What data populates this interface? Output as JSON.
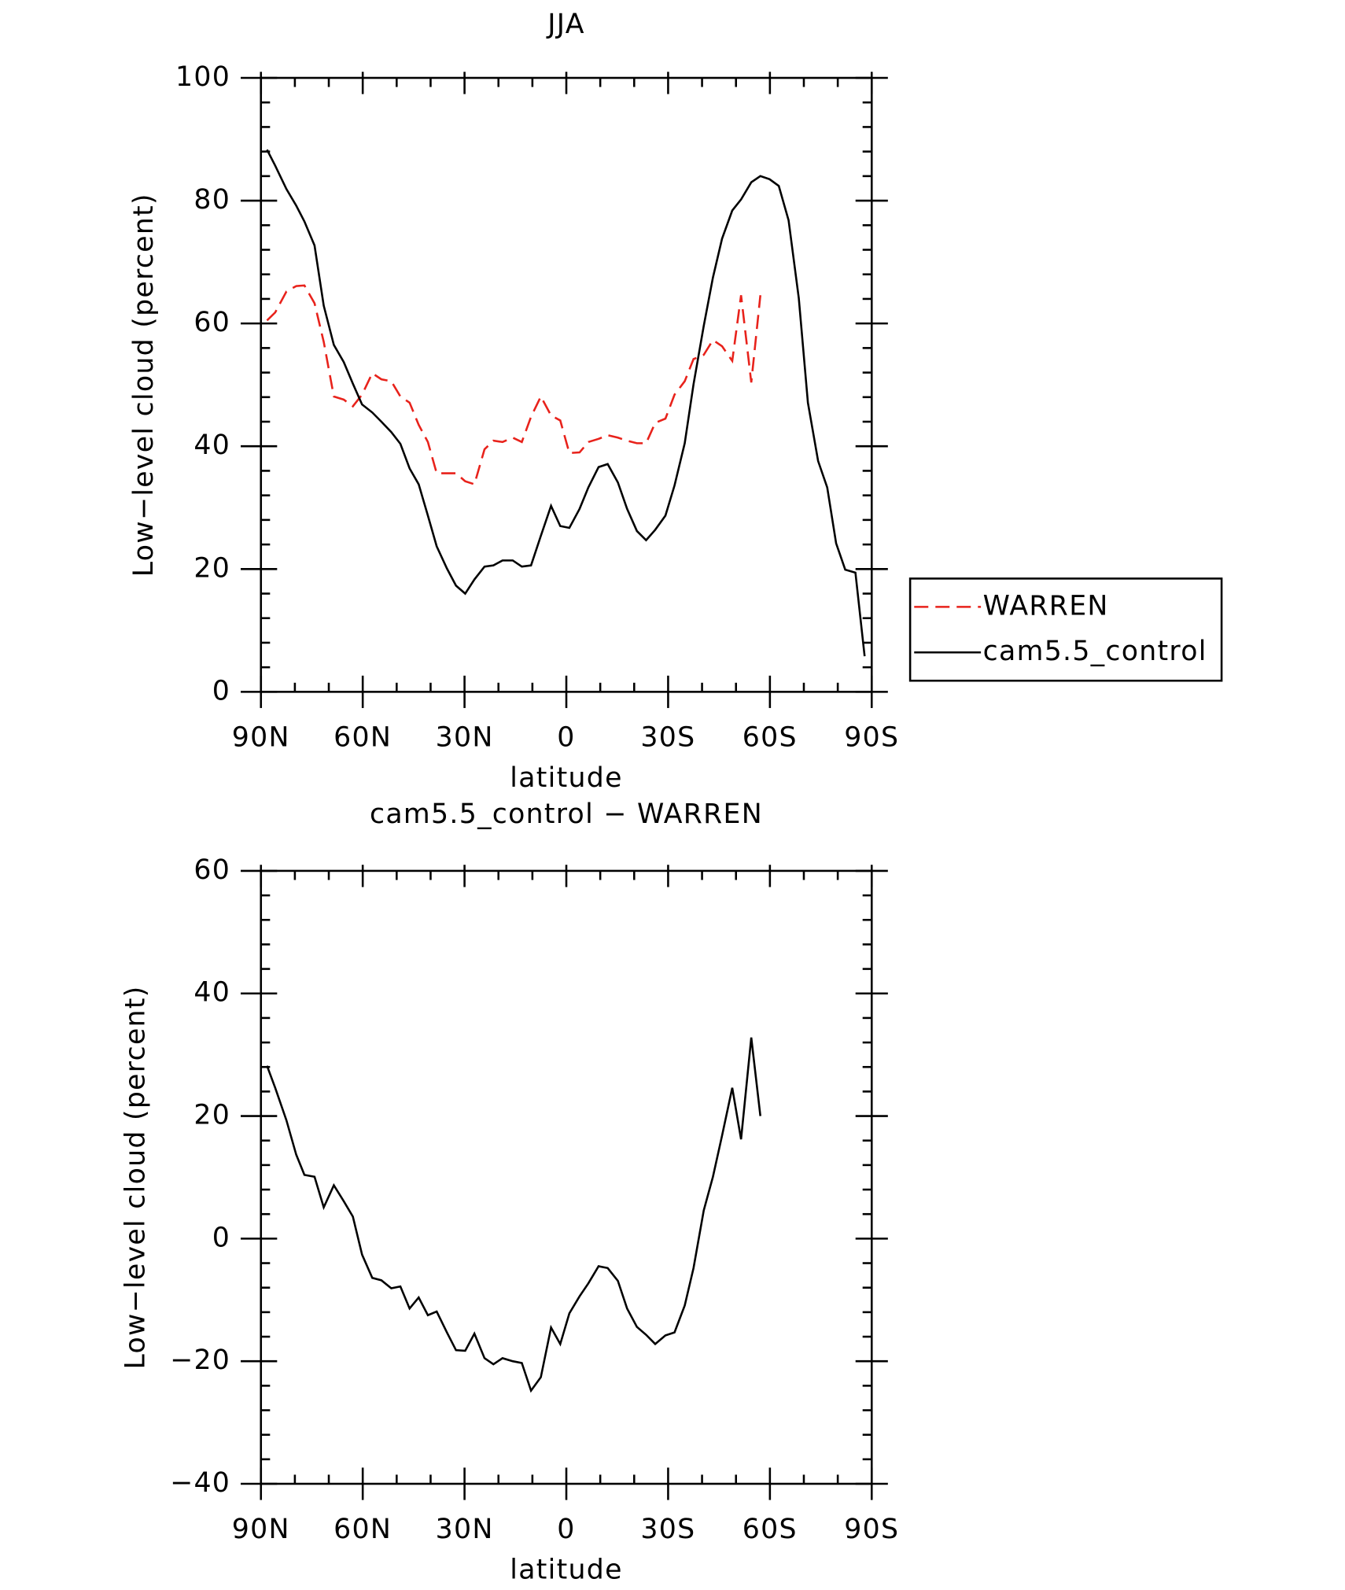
{
  "chart_data": [
    {
      "type": "line",
      "title": "JJA",
      "xlabel": "latitude",
      "ylabel": "Low−level cloud (percent)",
      "x": [
        88.2,
        85.8,
        82.5,
        79.6,
        77.2,
        74.2,
        71.5,
        68.5,
        65.6,
        62.9,
        60.2,
        57.2,
        54.5,
        51.6,
        48.9,
        46.2,
        43.5,
        40.8,
        38.2,
        35.2,
        32.5,
        29.8,
        27.1,
        24.1,
        21.5,
        18.8,
        15.8,
        13.1,
        10.4,
        7.5,
        4.5,
        1.8,
        -0.9,
        -3.9,
        -6.5,
        -9.5,
        -12.2,
        -15.2,
        -17.9,
        -20.8,
        -23.5,
        -26.2,
        -29.2,
        -31.9,
        -34.9,
        -37.5,
        -40.5,
        -43.2,
        -45.9,
        -48.9,
        -51.5,
        -54.5,
        -57.2,
        -59.9,
        -62.6,
        -65.5,
        -68.5,
        -71.2,
        -74.2,
        -76.9,
        -79.5,
        -82.2,
        -85.2,
        -87.9
      ],
      "series": [
        {
          "name": "WARREN",
          "color": "#e8221b",
          "style": "dashed",
          "values": [
            60.5,
            61.8,
            65.2,
            66.1,
            66.2,
            63.3,
            57.0,
            48.1,
            47.6,
            46.5,
            48.4,
            51.9,
            50.9,
            50.6,
            48.1,
            47.1,
            43.5,
            40.7,
            35.6,
            35.6,
            35.6,
            34.3,
            33.8,
            39.5,
            40.9,
            40.7,
            41.4,
            40.7,
            44.8,
            48.1,
            45.0,
            44.2,
            38.9,
            39.0,
            40.7,
            41.2,
            41.8,
            41.4,
            40.9,
            40.5,
            40.5,
            43.8,
            44.5,
            48.4,
            50.6,
            54.2,
            54.9,
            57.3,
            56.3,
            53.9,
            64.6,
            50.4,
            64.6,
            null,
            null,
            null,
            null,
            null,
            null,
            null,
            null,
            null,
            null,
            null
          ]
        },
        {
          "name": "cam5.5_control",
          "color": "#000000",
          "style": "solid",
          "values": [
            88.3,
            85.7,
            81.9,
            79.2,
            76.6,
            72.7,
            62.9,
            56.5,
            53.7,
            50.2,
            46.8,
            45.5,
            44.0,
            42.3,
            40.4,
            36.4,
            33.8,
            28.7,
            23.7,
            20.1,
            17.3,
            16.0,
            18.3,
            20.4,
            20.6,
            21.4,
            21.4,
            20.4,
            20.6,
            25.4,
            30.3,
            27.0,
            26.7,
            29.8,
            33.3,
            36.6,
            37.1,
            34.1,
            29.8,
            26.2,
            24.7,
            26.4,
            28.7,
            33.6,
            40.5,
            50.1,
            59.6,
            67.5,
            73.8,
            78.4,
            80.2,
            83.0,
            84.0,
            83.5,
            82.4,
            76.8,
            64.1,
            47.1,
            37.6,
            33.3,
            24.2,
            19.9,
            19.4,
            5.8
          ]
        }
      ],
      "xlim": [
        90,
        -90
      ],
      "xticks": [
        {
          "value": 90,
          "label": "90N"
        },
        {
          "value": 60,
          "label": "60N"
        },
        {
          "value": 30,
          "label": "30N"
        },
        0,
        {
          "value": -30,
          "label": "30S"
        },
        {
          "value": -60,
          "label": "60S"
        },
        {
          "value": -90,
          "label": "90S"
        }
      ],
      "ylim": [
        0,
        100
      ],
      "yticks": [
        0,
        20,
        40,
        60,
        80,
        100
      ],
      "legend": "right"
    },
    {
      "type": "line",
      "title": "cam5.5_control − WARREN",
      "xlabel": "latitude",
      "ylabel": "Low−level cloud (percent)",
      "x": [
        88.2,
        85.8,
        82.5,
        79.6,
        77.2,
        74.2,
        71.5,
        68.5,
        65.6,
        62.9,
        60.2,
        57.2,
        54.5,
        51.6,
        48.9,
        46.2,
        43.5,
        40.8,
        38.2,
        35.2,
        32.5,
        29.8,
        27.1,
        24.1,
        21.5,
        18.8,
        15.8,
        13.1,
        10.4,
        7.5,
        4.5,
        1.8,
        -0.9,
        -3.9,
        -6.5,
        -9.5,
        -12.2,
        -15.2,
        -17.9,
        -20.8,
        -23.5,
        -26.2,
        -29.2,
        -31.9,
        -34.9,
        -37.5,
        -40.5,
        -43.2,
        -45.9,
        -48.9,
        -51.5,
        -54.5,
        -57.2
      ],
      "series": [
        {
          "color": "#000000",
          "style": "solid",
          "values": [
            28.2,
            24.6,
            19.3,
            13.7,
            10.4,
            10.1,
            5.1,
            8.7,
            6.1,
            3.6,
            -2.6,
            -6.4,
            -6.8,
            -8.1,
            -7.8,
            -11.4,
            -9.6,
            -12.5,
            -11.9,
            -15.3,
            -18.2,
            -18.3,
            -15.5,
            -19.5,
            -20.5,
            -19.5,
            -20.0,
            -20.3,
            -24.8,
            -22.6,
            -14.5,
            -17.2,
            -12.2,
            -9.4,
            -7.3,
            -4.5,
            -4.8,
            -6.9,
            -11.4,
            -14.4,
            -15.7,
            -17.2,
            -15.8,
            -15.3,
            -10.9,
            -4.8,
            4.6,
            10.1,
            16.8,
            24.6,
            16.2,
            32.8,
            20.0
          ]
        }
      ],
      "xlim": [
        90,
        -90
      ],
      "xticks": [
        {
          "value": 90,
          "label": "90N"
        },
        {
          "value": 60,
          "label": "60N"
        },
        {
          "value": 30,
          "label": "30N"
        },
        0,
        {
          "value": -30,
          "label": "30S"
        },
        {
          "value": -60,
          "label": "60S"
        },
        {
          "value": -90,
          "label": "90S"
        }
      ],
      "ylim": [
        -40,
        60
      ],
      "yticks": [
        {
          "value": -40,
          "label": "−40"
        },
        {
          "value": -20,
          "label": "−20"
        },
        0,
        20,
        40,
        60
      ]
    }
  ]
}
